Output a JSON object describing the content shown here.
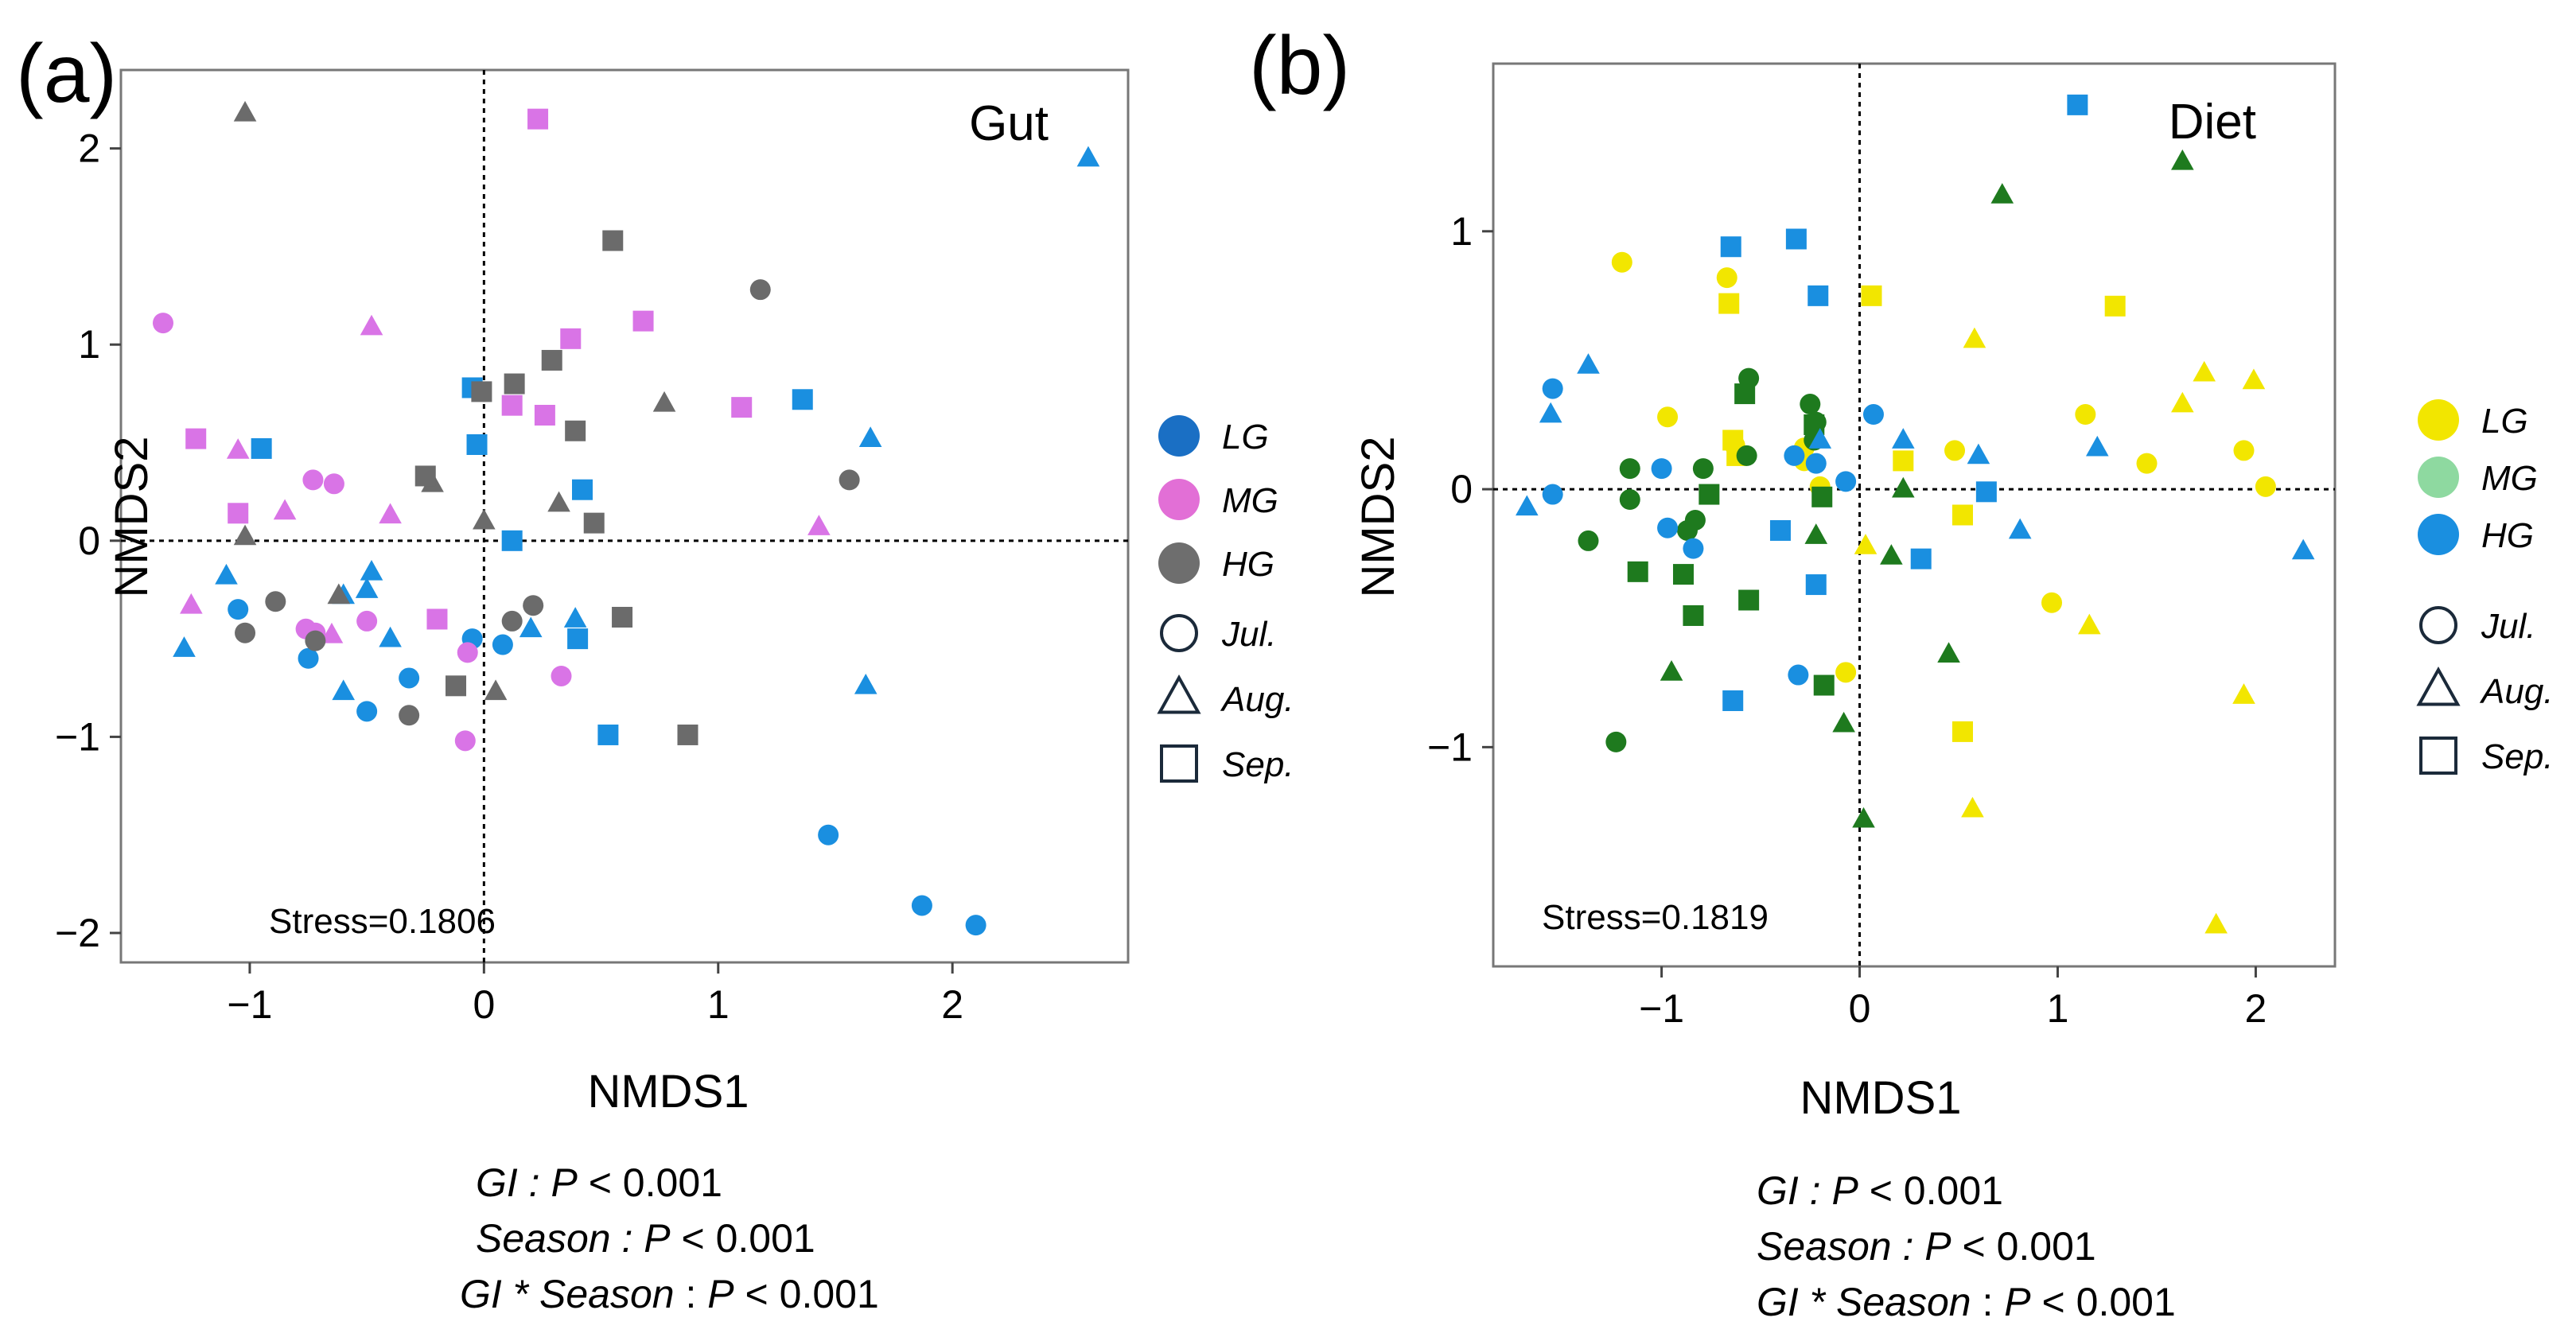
{
  "chart_data": [
    {
      "type": "scatter",
      "panel_label": "(a)",
      "title": "Gut",
      "xlabel": "NMDS1",
      "ylabel": "NMDS2",
      "xlim": [
        -1.55,
        2.75
      ],
      "ylim": [
        -2.15,
        2.4
      ],
      "xticks": [
        -1,
        0,
        1,
        2
      ],
      "yticks": [
        -2,
        -1,
        0,
        1,
        2
      ],
      "xtick_labels": [
        "−1",
        "0",
        "1",
        "2"
      ],
      "ytick_labels": [
        "−2",
        "−1",
        "0",
        "1",
        "2"
      ],
      "stress_text": "Stress=0.1806",
      "reference_lines": {
        "x": 0,
        "y": 0,
        "style": "dotted"
      },
      "legend": {
        "groups": [
          {
            "label": "LG",
            "color": "#1a6fc4"
          },
          {
            "label": "MG",
            "color": "#e26fd6"
          },
          {
            "label": "HG",
            "color": "#6e6e6e"
          }
        ],
        "seasons": [
          {
            "label": "Jul.",
            "shape": "circle"
          },
          {
            "label": "Aug.",
            "shape": "triangle"
          },
          {
            "label": "Sep.",
            "shape": "square"
          }
        ]
      },
      "stats": {
        "line1": {
          "term": "GI : ",
          "p": "P",
          "rest": " < 0.001"
        },
        "line2": {
          "term": "Season : ",
          "p": "P",
          "rest": " < 0.001"
        },
        "line3": {
          "term": "GI * Season",
          "sep": " : ",
          "p": "P",
          "rest": " < 0.001"
        }
      },
      "series": [
        {
          "name": "LG",
          "color": "#1a8fe0",
          "points": [
            [
              -1.05,
              -0.35,
              "circle"
            ],
            [
              -0.75,
              -0.6,
              "circle"
            ],
            [
              -0.5,
              -0.87,
              "circle"
            ],
            [
              -0.32,
              -0.7,
              "circle"
            ],
            [
              -0.05,
              -0.5,
              "circle"
            ],
            [
              0.08,
              -0.53,
              "circle"
            ],
            [
              1.47,
              -1.5,
              "circle"
            ],
            [
              1.87,
              -1.86,
              "circle"
            ],
            [
              2.1,
              -1.96,
              "circle"
            ],
            [
              -1.1,
              -0.18,
              "triangle"
            ],
            [
              -1.28,
              -0.55,
              "triangle"
            ],
            [
              -0.6,
              -0.77,
              "triangle"
            ],
            [
              -0.5,
              -0.25,
              "triangle"
            ],
            [
              -0.48,
              -0.16,
              "triangle"
            ],
            [
              -0.4,
              -0.5,
              "triangle"
            ],
            [
              -0.6,
              -0.28,
              "triangle"
            ],
            [
              0.2,
              -0.45,
              "triangle"
            ],
            [
              0.39,
              -0.4,
              "triangle"
            ],
            [
              1.63,
              -0.74,
              "triangle"
            ],
            [
              1.65,
              0.52,
              "triangle"
            ],
            [
              2.58,
              1.95,
              "triangle"
            ],
            [
              -0.95,
              0.47,
              "square"
            ],
            [
              -0.05,
              0.78,
              "square"
            ],
            [
              -0.03,
              0.49,
              "square"
            ],
            [
              0.12,
              0.0,
              "square"
            ],
            [
              0.42,
              0.26,
              "square"
            ],
            [
              0.4,
              -0.5,
              "square"
            ],
            [
              0.53,
              -0.99,
              "square"
            ],
            [
              1.36,
              0.72,
              "square"
            ]
          ]
        },
        {
          "name": "MG",
          "color": "#d974e6",
          "points": [
            [
              -1.37,
              1.11,
              "circle"
            ],
            [
              -0.73,
              0.31,
              "circle"
            ],
            [
              -0.64,
              0.29,
              "circle"
            ],
            [
              -0.76,
              -0.45,
              "circle"
            ],
            [
              -0.72,
              -0.47,
              "circle"
            ],
            [
              -0.5,
              -0.41,
              "circle"
            ],
            [
              -0.07,
              -0.57,
              "circle"
            ],
            [
              -0.08,
              -1.02,
              "circle"
            ],
            [
              0.33,
              -0.69,
              "circle"
            ],
            [
              -1.25,
              -0.33,
              "triangle"
            ],
            [
              -1.05,
              0.46,
              "triangle"
            ],
            [
              -0.85,
              0.15,
              "triangle"
            ],
            [
              -0.48,
              1.09,
              "triangle"
            ],
            [
              -0.4,
              0.13,
              "triangle"
            ],
            [
              -0.65,
              -0.48,
              "triangle"
            ],
            [
              1.43,
              0.07,
              "triangle"
            ],
            [
              -1.23,
              0.52,
              "square"
            ],
            [
              -1.05,
              0.14,
              "square"
            ],
            [
              -0.2,
              -0.4,
              "square"
            ],
            [
              0.12,
              0.69,
              "square"
            ],
            [
              0.26,
              0.64,
              "square"
            ],
            [
              0.37,
              1.03,
              "square"
            ],
            [
              0.68,
              1.12,
              "square"
            ],
            [
              1.1,
              0.68,
              "square"
            ],
            [
              0.23,
              2.15,
              "square"
            ]
          ]
        },
        {
          "name": "HG",
          "color": "#6b6b6b",
          "points": [
            [
              -1.02,
              -0.47,
              "circle"
            ],
            [
              -0.89,
              -0.31,
              "circle"
            ],
            [
              -0.72,
              -0.51,
              "circle"
            ],
            [
              -0.32,
              -0.89,
              "circle"
            ],
            [
              0.12,
              -0.41,
              "circle"
            ],
            [
              0.21,
              -0.33,
              "circle"
            ],
            [
              1.18,
              1.28,
              "circle"
            ],
            [
              1.56,
              0.31,
              "circle"
            ],
            [
              -1.02,
              2.18,
              "triangle"
            ],
            [
              -1.02,
              0.02,
              "triangle"
            ],
            [
              -0.62,
              -0.28,
              "triangle"
            ],
            [
              -0.22,
              0.29,
              "triangle"
            ],
            [
              0.0,
              0.1,
              "triangle"
            ],
            [
              0.05,
              -0.77,
              "triangle"
            ],
            [
              0.32,
              0.19,
              "triangle"
            ],
            [
              0.77,
              0.7,
              "triangle"
            ],
            [
              -0.25,
              0.33,
              "square"
            ],
            [
              -0.12,
              -0.74,
              "square"
            ],
            [
              -0.01,
              0.76,
              "square"
            ],
            [
              0.13,
              0.8,
              "square"
            ],
            [
              0.29,
              0.92,
              "square"
            ],
            [
              0.39,
              0.56,
              "square"
            ],
            [
              0.47,
              0.09,
              "square"
            ],
            [
              0.59,
              -0.39,
              "square"
            ],
            [
              0.55,
              1.53,
              "square"
            ],
            [
              0.87,
              -0.99,
              "square"
            ]
          ]
        }
      ]
    },
    {
      "type": "scatter",
      "panel_label": "(b)",
      "title": "Diet",
      "xlabel": "NMDS1",
      "ylabel": "NMDS2",
      "xlim": [
        -1.85,
        2.4
      ],
      "ylim": [
        -1.85,
        1.65
      ],
      "xticks": [
        -1,
        0,
        1,
        2
      ],
      "yticks": [
        -1,
        0,
        1
      ],
      "xtick_labels": [
        "−1",
        "0",
        "1",
        "2"
      ],
      "ytick_labels": [
        "−1",
        "0",
        "1"
      ],
      "stress_text": "Stress=0.1819",
      "reference_lines": {
        "x": 0,
        "y": 0,
        "style": "dotted"
      },
      "legend": {
        "groups": [
          {
            "label": "LG",
            "color": "#f2e600"
          },
          {
            "label": "MG",
            "color": "#8ed9a0"
          },
          {
            "label": "HG",
            "color": "#1a8fe0"
          }
        ],
        "seasons": [
          {
            "label": "Jul.",
            "shape": "circle"
          },
          {
            "label": "Aug.",
            "shape": "triangle"
          },
          {
            "label": "Sep.",
            "shape": "square"
          }
        ]
      },
      "stats": {
        "line1": {
          "term": "GI : ",
          "p": "P",
          "rest": " < 0.001"
        },
        "line2": {
          "term": "Season : ",
          "p": "P",
          "rest": " < 0.001"
        },
        "line3": {
          "term": "GI * Season",
          "sep": " : ",
          "p": "P",
          "rest": " < 0.001"
        }
      },
      "series": [
        {
          "name": "LG",
          "color": "#f2e600",
          "points": [
            [
              -1.2,
              0.88,
              "circle"
            ],
            [
              -0.67,
              0.82,
              "circle"
            ],
            [
              -0.97,
              0.28,
              "circle"
            ],
            [
              -0.63,
              0.17,
              "circle"
            ],
            [
              -0.28,
              0.11,
              "circle"
            ],
            [
              -0.28,
              0.16,
              "circle"
            ],
            [
              -0.2,
              0.01,
              "circle"
            ],
            [
              -0.07,
              -0.71,
              "circle"
            ],
            [
              0.48,
              0.15,
              "circle"
            ],
            [
              0.97,
              -0.44,
              "circle"
            ],
            [
              1.14,
              0.29,
              "circle"
            ],
            [
              1.45,
              0.1,
              "circle"
            ],
            [
              1.94,
              0.15,
              "circle"
            ],
            [
              2.05,
              0.01,
              "circle"
            ],
            [
              0.03,
              -0.22,
              "triangle"
            ],
            [
              0.58,
              0.58,
              "triangle"
            ],
            [
              0.57,
              -1.24,
              "triangle"
            ],
            [
              1.16,
              -0.53,
              "triangle"
            ],
            [
              1.63,
              0.33,
              "triangle"
            ],
            [
              1.74,
              0.45,
              "triangle"
            ],
            [
              1.94,
              -0.8,
              "triangle"
            ],
            [
              1.8,
              -1.69,
              "triangle"
            ],
            [
              1.99,
              0.42,
              "triangle"
            ],
            [
              -0.66,
              0.72,
              "square"
            ],
            [
              -0.64,
              0.19,
              "square"
            ],
            [
              -0.62,
              0.13,
              "square"
            ],
            [
              0.06,
              0.75,
              "square"
            ],
            [
              0.22,
              0.11,
              "square"
            ],
            [
              0.52,
              -0.1,
              "square"
            ],
            [
              0.52,
              -0.94,
              "square"
            ],
            [
              1.29,
              0.71,
              "square"
            ]
          ]
        },
        {
          "name": "MG",
          "color": "#1e7a1e",
          "points": [
            [
              -1.37,
              -0.2,
              "circle"
            ],
            [
              -1.23,
              -0.98,
              "circle"
            ],
            [
              -1.16,
              0.08,
              "circle"
            ],
            [
              -1.16,
              -0.04,
              "circle"
            ],
            [
              -0.87,
              -0.16,
              "circle"
            ],
            [
              -0.83,
              -0.12,
              "circle"
            ],
            [
              -0.79,
              0.08,
              "circle"
            ],
            [
              -0.56,
              0.43,
              "circle"
            ],
            [
              -0.57,
              0.13,
              "circle"
            ],
            [
              -0.25,
              0.33,
              "circle"
            ],
            [
              -0.22,
              0.26,
              "circle"
            ],
            [
              -0.23,
              0.19,
              "circle"
            ],
            [
              -0.95,
              -0.71,
              "triangle"
            ],
            [
              -0.22,
              -0.18,
              "triangle"
            ],
            [
              -0.08,
              -0.91,
              "triangle"
            ],
            [
              0.02,
              -1.28,
              "triangle"
            ],
            [
              0.16,
              -0.26,
              "triangle"
            ],
            [
              0.22,
              0.0,
              "triangle"
            ],
            [
              0.45,
              -0.64,
              "triangle"
            ],
            [
              0.72,
              1.14,
              "triangle"
            ],
            [
              1.63,
              1.27,
              "triangle"
            ],
            [
              -1.12,
              -0.32,
              "square"
            ],
            [
              -0.89,
              -0.33,
              "square"
            ],
            [
              -0.84,
              -0.49,
              "square"
            ],
            [
              -0.76,
              -0.02,
              "square"
            ],
            [
              -0.58,
              0.37,
              "square"
            ],
            [
              -0.56,
              -0.43,
              "square"
            ],
            [
              -0.23,
              0.25,
              "square"
            ],
            [
              -0.19,
              -0.03,
              "square"
            ],
            [
              -0.18,
              -0.76,
              "square"
            ]
          ]
        },
        {
          "name": "HG",
          "color": "#1a8fe0",
          "points": [
            [
              -1.55,
              0.39,
              "circle"
            ],
            [
              -1.55,
              -0.02,
              "circle"
            ],
            [
              -1.0,
              0.08,
              "circle"
            ],
            [
              -0.97,
              -0.15,
              "circle"
            ],
            [
              -0.84,
              -0.23,
              "circle"
            ],
            [
              -0.33,
              0.13,
              "circle"
            ],
            [
              -0.22,
              0.1,
              "circle"
            ],
            [
              -0.07,
              0.03,
              "circle"
            ],
            [
              -0.31,
              -0.72,
              "circle"
            ],
            [
              0.07,
              0.29,
              "circle"
            ],
            [
              -1.68,
              -0.07,
              "triangle"
            ],
            [
              -1.56,
              0.29,
              "triangle"
            ],
            [
              -1.37,
              0.48,
              "triangle"
            ],
            [
              -0.2,
              0.19,
              "triangle"
            ],
            [
              0.22,
              0.19,
              "triangle"
            ],
            [
              0.6,
              0.13,
              "triangle"
            ],
            [
              0.81,
              -0.16,
              "triangle"
            ],
            [
              1.2,
              0.16,
              "triangle"
            ],
            [
              2.24,
              -0.24,
              "triangle"
            ],
            [
              -0.65,
              0.94,
              "square"
            ],
            [
              -0.32,
              0.97,
              "square"
            ],
            [
              -0.21,
              0.75,
              "square"
            ],
            [
              -0.4,
              -0.16,
              "square"
            ],
            [
              -0.22,
              -0.37,
              "square"
            ],
            [
              -0.64,
              -0.82,
              "square"
            ],
            [
              0.31,
              -0.27,
              "square"
            ],
            [
              0.64,
              -0.01,
              "square"
            ],
            [
              1.1,
              1.49,
              "square"
            ]
          ]
        }
      ]
    }
  ]
}
